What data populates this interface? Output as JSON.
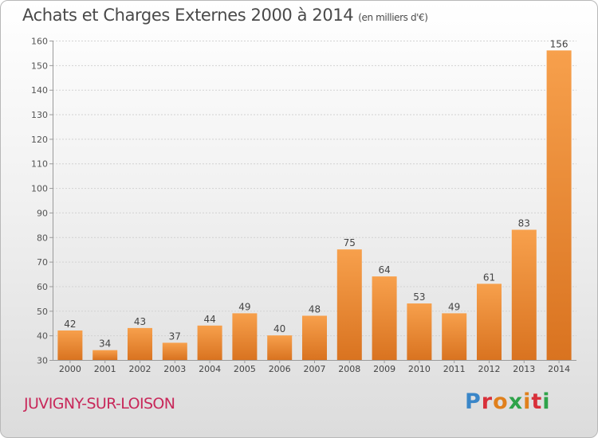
{
  "header": {
    "title": "Achats et Charges Externes 2000 à 2014",
    "unit": "(en milliers d'€)"
  },
  "footer": {
    "commune": "JUVIGNY-SUR-LOISON",
    "logo_text": "Proxiti"
  },
  "colors": {
    "bar_light": "#f7a04c",
    "bar_dark": "#d97320",
    "commune_text": "#c8285a",
    "title_text": "#4a4a4a"
  },
  "chart_data": {
    "type": "bar",
    "title": "Achats et Charges Externes 2000 à 2014",
    "subtitle": "(en milliers d'€)",
    "xlabel": "",
    "ylabel": "",
    "categories": [
      "2000",
      "2001",
      "2002",
      "2003",
      "2004",
      "2005",
      "2006",
      "2007",
      "2008",
      "2009",
      "2010",
      "2011",
      "2012",
      "2013",
      "2014"
    ],
    "values": [
      42,
      34,
      43,
      37,
      44,
      49,
      40,
      48,
      75,
      64,
      53,
      49,
      61,
      83,
      156
    ],
    "data_labels": [
      "42",
      "34",
      "43",
      "37",
      "44",
      "49",
      "40",
      "48",
      "75",
      "64",
      "53",
      "49",
      "61",
      "83",
      "156"
    ],
    "ylim": [
      30,
      160
    ],
    "yticks": [
      30,
      40,
      50,
      60,
      70,
      80,
      90,
      100,
      110,
      120,
      130,
      140,
      150,
      160
    ],
    "grid": true,
    "legend": "none"
  }
}
